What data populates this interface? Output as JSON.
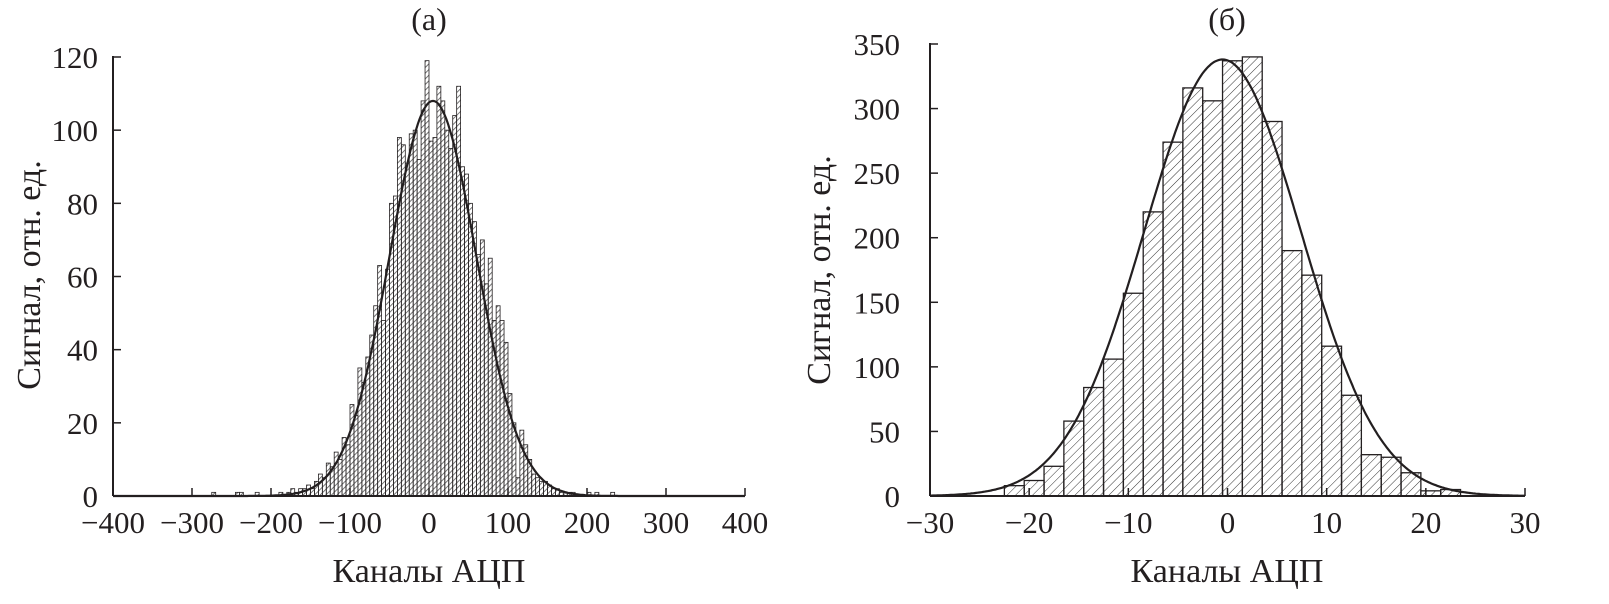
{
  "chart_data": [
    {
      "type": "bar",
      "title": "(а)",
      "xlabel": "Каналы  АЦП",
      "ylabel": "Сигнал, отн. ед.",
      "xlim": [
        -400,
        400
      ],
      "ylim": [
        0,
        120
      ],
      "xticks": [
        "−400",
        "−300",
        "−200",
        "−100",
        "0",
        "100",
        "200",
        "300",
        "400"
      ],
      "xtick_values": [
        -400,
        -300,
        -200,
        -100,
        0,
        100,
        200,
        300,
        400
      ],
      "yticks": [
        "0",
        "20",
        "40",
        "60",
        "80",
        "100",
        "120"
      ],
      "ytick_values": [
        0,
        20,
        40,
        60,
        80,
        100,
        120
      ],
      "bin_width": 5,
      "x": [
        -272.5,
        -242.5,
        -237.5,
        -217.5,
        -187.5,
        -177.5,
        -172.5,
        -167.5,
        -162.5,
        -157.5,
        -152.5,
        -147.5,
        -142.5,
        -137.5,
        -132.5,
        -127.5,
        -122.5,
        -117.5,
        -112.5,
        -107.5,
        -102.5,
        -97.5,
        -92.5,
        -87.5,
        -82.5,
        -77.5,
        -72.5,
        -67.5,
        -62.5,
        -57.5,
        -52.5,
        -47.5,
        -42.5,
        -37.5,
        -32.5,
        -27.5,
        -22.5,
        -17.5,
        -12.5,
        -7.5,
        -2.5,
        2.5,
        7.5,
        12.5,
        17.5,
        22.5,
        27.5,
        32.5,
        37.5,
        42.5,
        47.5,
        52.5,
        57.5,
        62.5,
        67.5,
        72.5,
        77.5,
        82.5,
        87.5,
        92.5,
        97.5,
        102.5,
        107.5,
        112.5,
        117.5,
        122.5,
        127.5,
        132.5,
        137.5,
        142.5,
        147.5,
        152.5,
        157.5,
        162.5,
        167.5,
        172.5,
        177.5,
        182.5,
        202.5,
        212.5,
        232.5
      ],
      "values": [
        1,
        1,
        1,
        1,
        1,
        1,
        2,
        1,
        2,
        2,
        3,
        2,
        4,
        6,
        5,
        9,
        8,
        12,
        10,
        16,
        14,
        25,
        22,
        35,
        31,
        38,
        44,
        52,
        63,
        48,
        62,
        80,
        82,
        98,
        96,
        91,
        99,
        100,
        92,
        108,
        119,
        97,
        98,
        112,
        108,
        100,
        95,
        104,
        112,
        90,
        88,
        80,
        75,
        66,
        70,
        58,
        65,
        48,
        52,
        48,
        42,
        28,
        20,
        5,
        18,
        14,
        10,
        6,
        5,
        4,
        4,
        3,
        2,
        2,
        1,
        1,
        1,
        1,
        1,
        1,
        1
      ],
      "fit": {
        "type": "gaussian",
        "amplitude": 108,
        "mean": 5,
        "sigma": 55
      }
    },
    {
      "type": "bar",
      "title": "(б)",
      "xlabel": "Каналы  АЦП",
      "ylabel": "Сигнал, отн. ед.",
      "xlim": [
        -30,
        30
      ],
      "ylim": [
        0,
        350
      ],
      "xticks": [
        "−30",
        "−20",
        "−10",
        "0",
        "10",
        "20",
        "30"
      ],
      "xtick_values": [
        -30,
        -20,
        -10,
        0,
        10,
        20,
        30
      ],
      "yticks": [
        "0",
        "50",
        "100",
        "150",
        "200",
        "250",
        "300",
        "350"
      ],
      "ytick_values": [
        0,
        50,
        100,
        150,
        200,
        250,
        300,
        350
      ],
      "bin_width": 2,
      "x": [
        -21.5,
        -19.5,
        -17.5,
        -15.5,
        -13.5,
        -11.5,
        -9.5,
        -7.5,
        -5.5,
        -3.5,
        -1.5,
        0.5,
        2.5,
        4.5,
        6.5,
        8.5,
        10.5,
        12.5,
        14.5,
        16.5,
        18.5,
        20.5,
        22.5
      ],
      "values": [
        8,
        12,
        23,
        58,
        84,
        106,
        157,
        220,
        274,
        316,
        306,
        337,
        340,
        290,
        190,
        171,
        116,
        78,
        32,
        30,
        18,
        4,
        5
      ],
      "fit": {
        "type": "gaussian",
        "amplitude": 338,
        "mean": -0.5,
        "sigma": 7.9
      }
    }
  ]
}
